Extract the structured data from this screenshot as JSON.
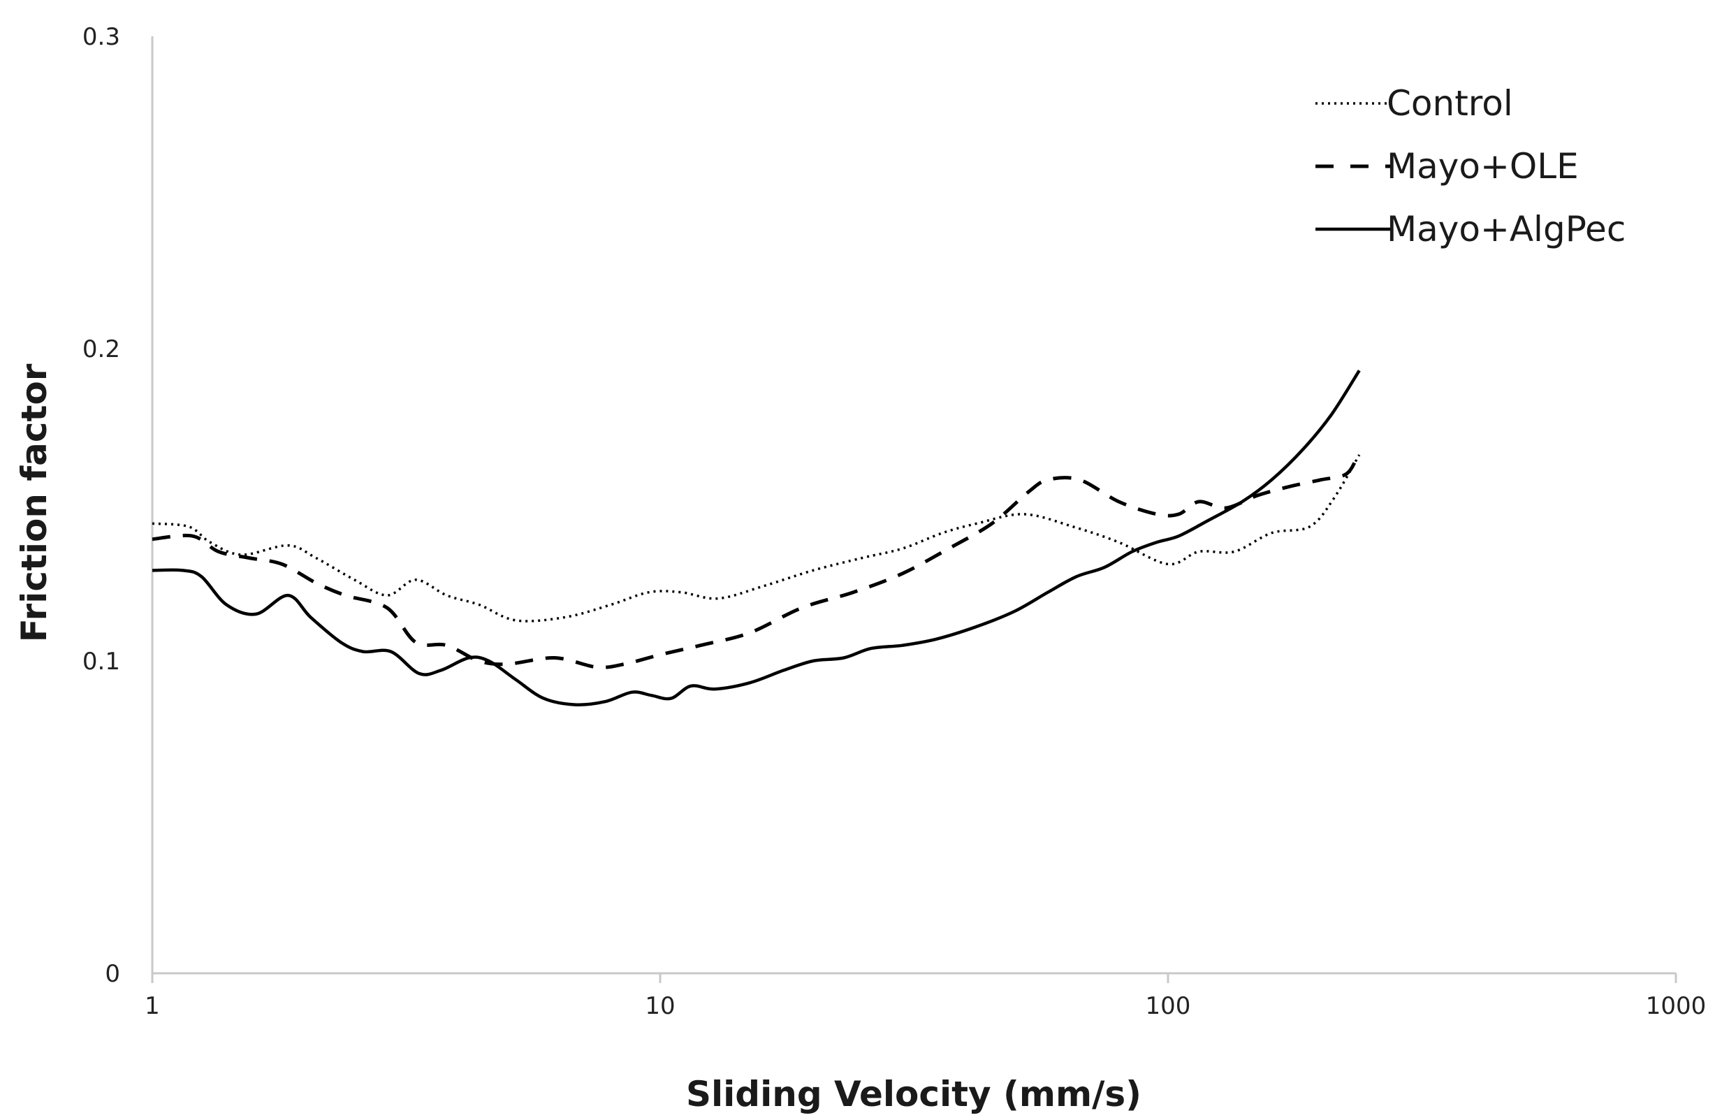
{
  "chart_data": {
    "type": "line",
    "title": "",
    "xlabel": "Sliding Velocity (mm/s)",
    "ylabel": "Friction factor",
    "xscale": "log",
    "xlim": [
      1,
      1000
    ],
    "ylim": [
      0,
      0.3
    ],
    "x_ticks": [
      1,
      10,
      100,
      1000
    ],
    "x_tick_labels": [
      "1",
      "10",
      "100",
      "1000"
    ],
    "y_ticks": [
      0,
      0.1,
      0.2,
      0.3
    ],
    "y_tick_labels": [
      "0",
      "0.1",
      "0.2",
      "0.3"
    ],
    "grid": false,
    "legend_position": "top-right",
    "series": [
      {
        "name": "Control",
        "style": "dotted",
        "color": "#000000",
        "points": [
          [
            1.0,
            0.144
          ],
          [
            1.18,
            0.143
          ],
          [
            1.3,
            0.138
          ],
          [
            1.5,
            0.134
          ],
          [
            1.85,
            0.137
          ],
          [
            2.1,
            0.133
          ],
          [
            2.5,
            0.126
          ],
          [
            2.9,
            0.121
          ],
          [
            3.3,
            0.126
          ],
          [
            3.8,
            0.121
          ],
          [
            4.4,
            0.118
          ],
          [
            5.2,
            0.113
          ],
          [
            6.5,
            0.114
          ],
          [
            8.0,
            0.118
          ],
          [
            9.5,
            0.122
          ],
          [
            11.0,
            0.122
          ],
          [
            13.0,
            0.12
          ],
          [
            16.0,
            0.124
          ],
          [
            20.0,
            0.129
          ],
          [
            25.0,
            0.133
          ],
          [
            30.0,
            0.136
          ],
          [
            36.0,
            0.141
          ],
          [
            42.0,
            0.144
          ],
          [
            52.0,
            0.147
          ],
          [
            65.0,
            0.143
          ],
          [
            80.0,
            0.138
          ],
          [
            100.0,
            0.131
          ],
          [
            115.0,
            0.135
          ],
          [
            135.0,
            0.135
          ],
          [
            160.0,
            0.141
          ],
          [
            190.0,
            0.143
          ],
          [
            212.0,
            0.152
          ],
          [
            238.0,
            0.166
          ]
        ]
      },
      {
        "name": "Mayo+OLE",
        "style": "dashed",
        "color": "#000000",
        "points": [
          [
            1.0,
            0.139
          ],
          [
            1.2,
            0.14
          ],
          [
            1.35,
            0.135
          ],
          [
            1.55,
            0.133
          ],
          [
            1.8,
            0.131
          ],
          [
            2.1,
            0.125
          ],
          [
            2.4,
            0.121
          ],
          [
            2.9,
            0.117
          ],
          [
            3.3,
            0.106
          ],
          [
            3.8,
            0.105
          ],
          [
            4.4,
            0.1
          ],
          [
            5.0,
            0.099
          ],
          [
            6.2,
            0.101
          ],
          [
            7.5,
            0.098
          ],
          [
            8.5,
            0.099
          ],
          [
            10.0,
            0.102
          ],
          [
            12.0,
            0.105
          ],
          [
            15.0,
            0.109
          ],
          [
            19.0,
            0.117
          ],
          [
            24.0,
            0.122
          ],
          [
            30.0,
            0.128
          ],
          [
            37.0,
            0.136
          ],
          [
            45.0,
            0.144
          ],
          [
            53.0,
            0.154
          ],
          [
            58.0,
            0.158
          ],
          [
            67.0,
            0.158
          ],
          [
            80.0,
            0.151
          ],
          [
            95.0,
            0.147
          ],
          [
            105.0,
            0.147
          ],
          [
            115.0,
            0.151
          ],
          [
            130.0,
            0.149
          ],
          [
            150.0,
            0.153
          ],
          [
            175.0,
            0.156
          ],
          [
            200.0,
            0.158
          ],
          [
            225.0,
            0.16
          ],
          [
            238.0,
            0.167
          ]
        ]
      },
      {
        "name": "Mayo+AlgPec",
        "style": "solid",
        "color": "#000000",
        "points": [
          [
            1.0,
            0.129
          ],
          [
            1.15,
            0.129
          ],
          [
            1.25,
            0.127
          ],
          [
            1.4,
            0.118
          ],
          [
            1.6,
            0.115
          ],
          [
            1.85,
            0.121
          ],
          [
            2.05,
            0.114
          ],
          [
            2.35,
            0.106
          ],
          [
            2.6,
            0.103
          ],
          [
            2.95,
            0.103
          ],
          [
            3.35,
            0.096
          ],
          [
            3.7,
            0.097
          ],
          [
            4.2,
            0.101
          ],
          [
            4.6,
            0.1
          ],
          [
            5.2,
            0.094
          ],
          [
            5.9,
            0.088
          ],
          [
            6.8,
            0.086
          ],
          [
            7.8,
            0.087
          ],
          [
            8.8,
            0.09
          ],
          [
            9.6,
            0.089
          ],
          [
            10.5,
            0.088
          ],
          [
            11.5,
            0.092
          ],
          [
            12.8,
            0.091
          ],
          [
            15.0,
            0.093
          ],
          [
            17.5,
            0.097
          ],
          [
            20.0,
            0.1
          ],
          [
            23.0,
            0.101
          ],
          [
            26.0,
            0.104
          ],
          [
            30.0,
            0.105
          ],
          [
            35.0,
            0.107
          ],
          [
            42.0,
            0.111
          ],
          [
            50.0,
            0.116
          ],
          [
            58.0,
            0.122
          ],
          [
            66.0,
            0.127
          ],
          [
            75.0,
            0.13
          ],
          [
            85.0,
            0.135
          ],
          [
            95.0,
            0.138
          ],
          [
            105.0,
            0.14
          ],
          [
            120.0,
            0.145
          ],
          [
            140.0,
            0.151
          ],
          [
            160.0,
            0.158
          ],
          [
            185.0,
            0.168
          ],
          [
            210.0,
            0.179
          ],
          [
            238.0,
            0.193
          ]
        ]
      }
    ]
  }
}
